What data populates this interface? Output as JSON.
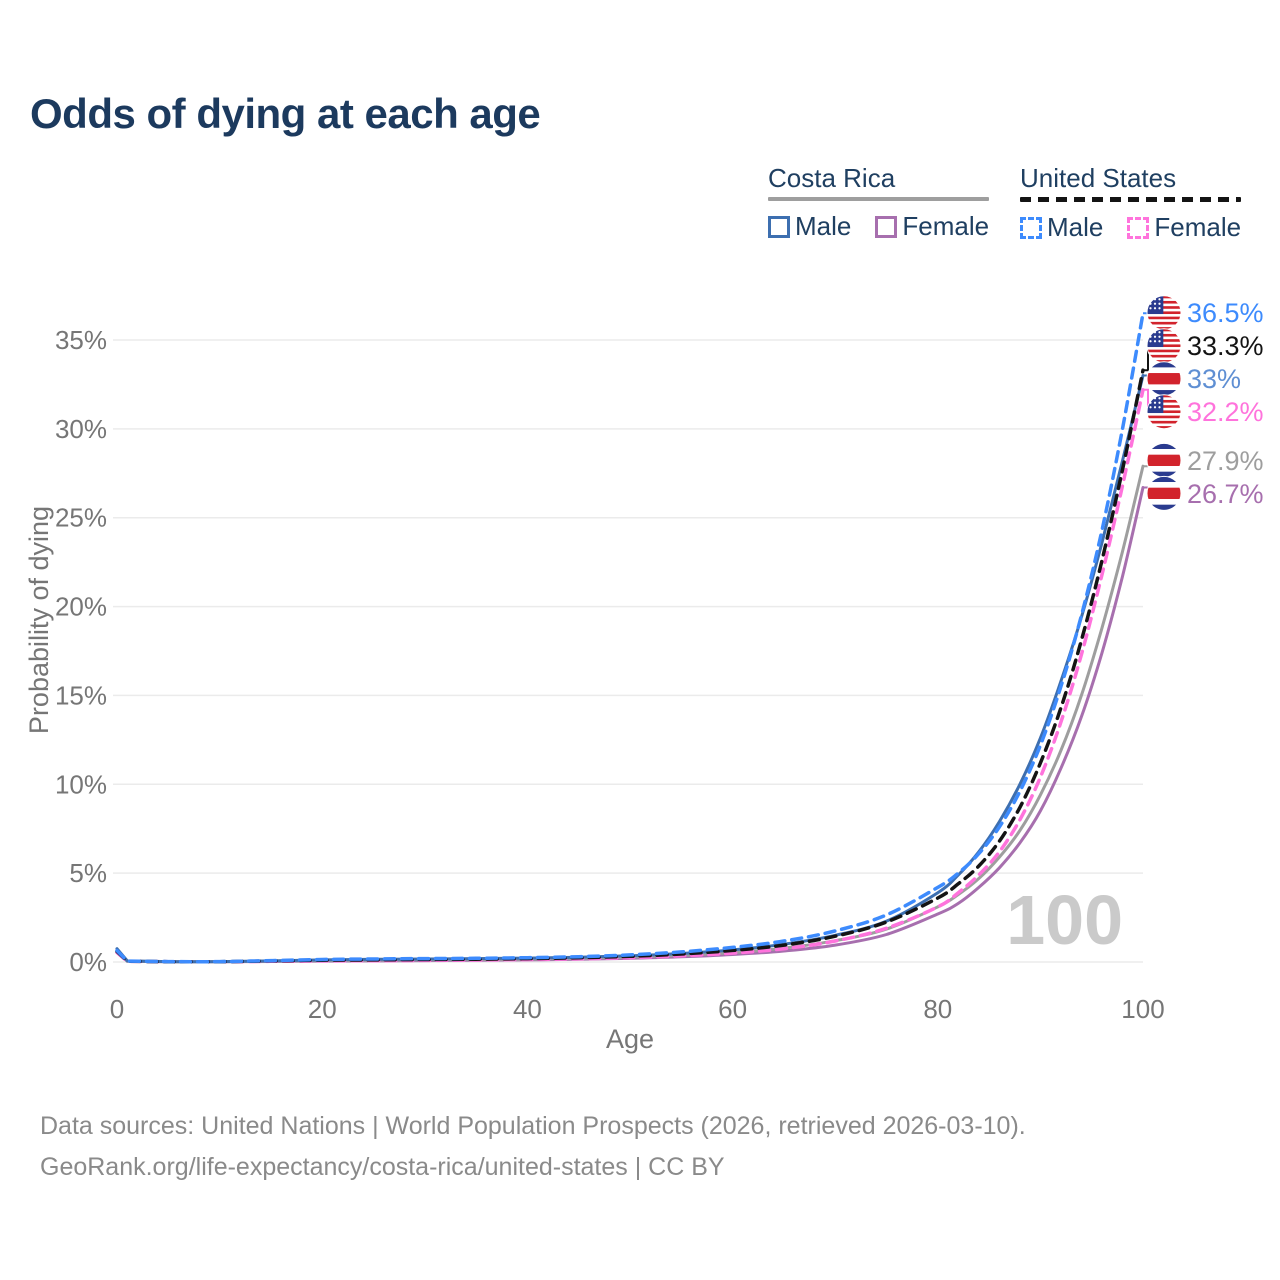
{
  "title": "Odds of dying at each age",
  "legend": {
    "groups": [
      {
        "label": "Costa Rica",
        "underline_series": "cr_total",
        "items": [
          {
            "label": "Male",
            "series": "cr_male"
          },
          {
            "label": "Female",
            "series": "cr_female"
          }
        ]
      },
      {
        "label": "United States",
        "underline_series": "us_total",
        "items": [
          {
            "label": "Male",
            "series": "us_male"
          },
          {
            "label": "Female",
            "series": "us_female"
          }
        ]
      }
    ]
  },
  "chart_data": {
    "type": "line",
    "title": "Odds of dying at each age",
    "xlabel": "Age",
    "ylabel": "Probability of dying",
    "xlim": [
      0,
      100
    ],
    "ylim": [
      0,
      37
    ],
    "x_ticks": [
      "0",
      "20",
      "40",
      "60",
      "80",
      "100"
    ],
    "y_ticks": [
      "0%",
      "5%",
      "10%",
      "15%",
      "20%",
      "25%",
      "30%",
      "35%"
    ],
    "grid": true,
    "legend_position": "top-right",
    "watermark": "100",
    "ages": [
      0,
      1,
      5,
      10,
      15,
      20,
      25,
      30,
      35,
      40,
      45,
      50,
      55,
      60,
      65,
      70,
      75,
      80,
      82,
      84,
      86,
      88,
      90,
      92,
      94,
      96,
      98,
      100
    ],
    "series": [
      {
        "id": "us_male",
        "name": "United States Male",
        "country": "United States",
        "flag": "us",
        "color": "#3d8bfd",
        "label_color": "#3d8bfd",
        "dashed": true,
        "end_label": "36.5%",
        "values": [
          0.64,
          0.05,
          0.02,
          0.02,
          0.08,
          0.14,
          0.17,
          0.19,
          0.21,
          0.24,
          0.3,
          0.4,
          0.57,
          0.82,
          1.18,
          1.75,
          2.65,
          4.2,
          5.0,
          6.1,
          7.6,
          9.6,
          12.2,
          15.5,
          19.5,
          24.3,
          30.0,
          36.5
        ]
      },
      {
        "id": "us_total",
        "name": "United States Both sexes",
        "country": "United States",
        "flag": "us",
        "color": "#141414",
        "label_color": "#141414",
        "dashed": true,
        "end_label": "33.3%",
        "values": [
          0.59,
          0.045,
          0.018,
          0.016,
          0.06,
          0.1,
          0.12,
          0.14,
          0.16,
          0.19,
          0.24,
          0.32,
          0.45,
          0.65,
          0.95,
          1.45,
          2.25,
          3.6,
          4.4,
          5.4,
          6.8,
          8.7,
          11.2,
          14.3,
          18.1,
          22.6,
          27.7,
          33.3
        ]
      },
      {
        "id": "cr_male",
        "name": "Costa Rica Male",
        "country": "Costa Rica",
        "flag": "cr",
        "color": "#3d6fb0",
        "label_color": "#5f8fd3",
        "dashed": false,
        "end_label": "33%",
        "values": [
          0.75,
          0.06,
          0.02,
          0.02,
          0.06,
          0.12,
          0.15,
          0.17,
          0.19,
          0.22,
          0.27,
          0.35,
          0.48,
          0.68,
          1.0,
          1.5,
          2.3,
          3.9,
          4.9,
          6.2,
          7.9,
          10.0,
          12.6,
          15.8,
          19.4,
          23.6,
          28.2,
          33.0
        ]
      },
      {
        "id": "us_female",
        "name": "United States Female",
        "country": "United States",
        "flag": "us",
        "color": "#ff73dc",
        "label_color": "#ff73dc",
        "dashed": true,
        "end_label": "32.2%",
        "values": [
          0.53,
          0.04,
          0.015,
          0.014,
          0.04,
          0.06,
          0.07,
          0.09,
          0.11,
          0.14,
          0.18,
          0.25,
          0.35,
          0.5,
          0.75,
          1.18,
          1.9,
          3.1,
          3.9,
          4.9,
          6.2,
          8.0,
          10.4,
          13.5,
          17.3,
          21.8,
          26.8,
          32.2
        ]
      },
      {
        "id": "cr_total",
        "name": "Costa Rica Both sexes",
        "country": "Costa Rica",
        "flag": "cr",
        "color": "#9e9e9e",
        "label_color": "#9e9e9e",
        "dashed": false,
        "end_label": "27.9%",
        "values": [
          0.65,
          0.05,
          0.018,
          0.016,
          0.045,
          0.08,
          0.1,
          0.12,
          0.14,
          0.16,
          0.2,
          0.27,
          0.37,
          0.53,
          0.78,
          1.2,
          1.85,
          3.1,
          3.8,
          4.7,
          5.9,
          7.4,
          9.4,
          11.9,
          15.0,
          18.8,
          23.1,
          27.9
        ]
      },
      {
        "id": "cr_female",
        "name": "Costa Rica Female",
        "country": "Costa Rica",
        "flag": "cr",
        "color": "#a76fae",
        "label_color": "#a76fae",
        "dashed": false,
        "end_label": "26.7%",
        "values": [
          0.55,
          0.04,
          0.015,
          0.013,
          0.03,
          0.05,
          0.06,
          0.08,
          0.1,
          0.12,
          0.15,
          0.21,
          0.29,
          0.42,
          0.62,
          0.95,
          1.55,
          2.7,
          3.3,
          4.2,
          5.3,
          6.7,
          8.5,
          10.9,
          13.8,
          17.4,
          21.7,
          26.7
        ]
      }
    ]
  },
  "footer": {
    "line1": "Data sources: United Nations | World Population Prospects (2026, retrieved 2026-03-10).",
    "line2": "GeoRank.org/life-expectancy/costa-rica/united-states | CC BY"
  }
}
